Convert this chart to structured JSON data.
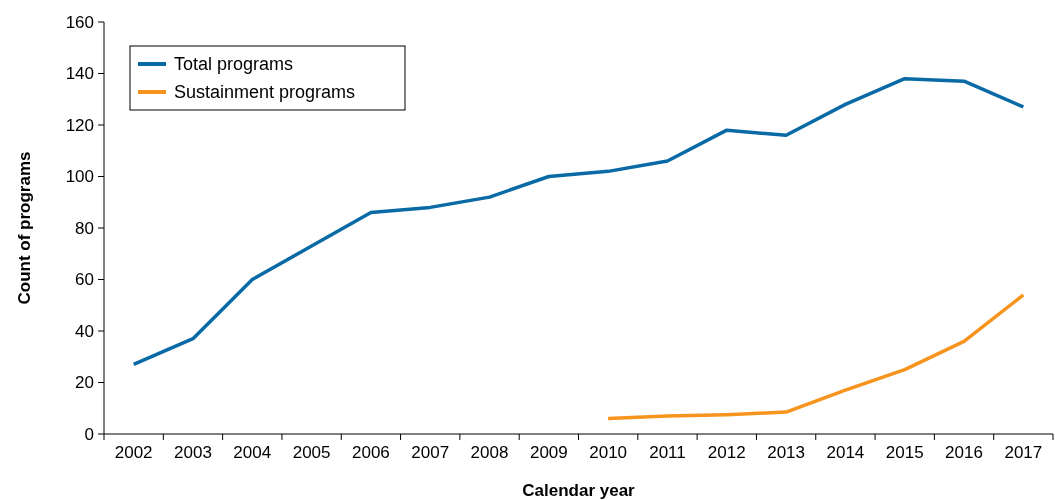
{
  "chart_data": {
    "type": "line",
    "xlabel": "Calendar year",
    "ylabel": "Count of programs",
    "categories": [
      "2002",
      "2003",
      "2004",
      "2005",
      "2006",
      "2007",
      "2008",
      "2009",
      "2010",
      "2011",
      "2012",
      "2013",
      "2014",
      "2015",
      "2016",
      "2017"
    ],
    "series": [
      {
        "name": "Total programs",
        "color": "#0a6aa6",
        "values": [
          27,
          37,
          60,
          73,
          86,
          88,
          92,
          100,
          102,
          106,
          118,
          116,
          128,
          138,
          137,
          127
        ]
      },
      {
        "name": "Sustainment programs",
        "color": "#f7941d",
        "values": [
          null,
          null,
          null,
          null,
          null,
          null,
          null,
          null,
          6,
          7,
          7.5,
          8.5,
          17,
          25,
          36,
          54
        ]
      }
    ],
    "ylim": [
      0,
      160
    ],
    "yticks": [
      0,
      20,
      40,
      60,
      80,
      100,
      120,
      140,
      160
    ],
    "grid": false,
    "legend": "top left",
    "marker": "none",
    "line_style": "solid"
  }
}
